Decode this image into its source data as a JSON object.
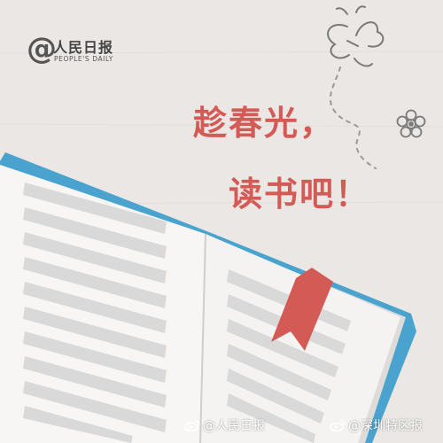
{
  "logo": {
    "name": "人民日报",
    "sub": "PEOPLE'S DAILY"
  },
  "title": {
    "line1": "趁春光，",
    "line2": "读书吧！"
  },
  "watermarks": [
    "@人民日报",
    "@深圳特区报"
  ],
  "colors": {
    "background": "#eae7e4",
    "accent": "#d45a55",
    "book_cover": "#4aa3cf",
    "page": "#f7f6f5",
    "line": "#d9d9d9"
  },
  "icons": [
    "at-sign-icon",
    "butterfly-icon",
    "flower-icon",
    "bookmark-icon",
    "weibo-icon"
  ]
}
